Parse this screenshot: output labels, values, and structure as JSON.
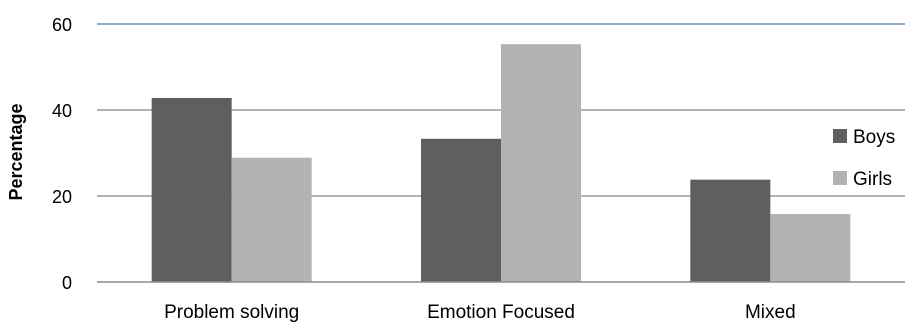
{
  "chart_data": {
    "type": "bar",
    "title": "",
    "xlabel": "",
    "ylabel": "Percentage",
    "ylim": [
      0,
      60
    ],
    "yticks": [
      0,
      20,
      40,
      60
    ],
    "grid": true,
    "legend_position": "right",
    "categories": [
      "Problem solving",
      "Emotion Focused",
      "Mixed"
    ],
    "series": [
      {
        "name": "Boys",
        "values": [
          42.8,
          33.3,
          23.8
        ],
        "color": "#5f5f5f"
      },
      {
        "name": "Girls",
        "values": [
          28.9,
          55.3,
          15.8
        ],
        "color": "#b3b3b3"
      }
    ]
  }
}
